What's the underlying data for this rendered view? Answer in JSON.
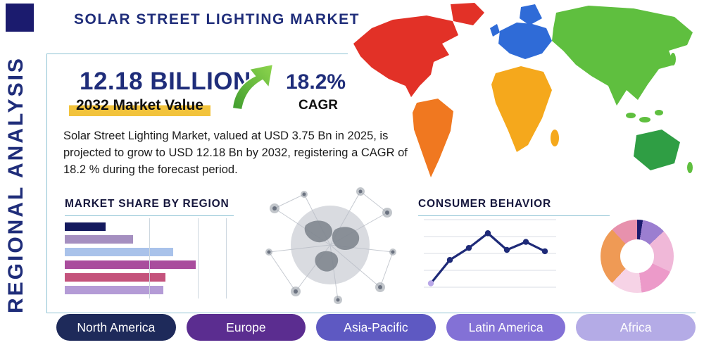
{
  "header": {
    "title": "SOLAR STREET LIGHTING MARKET"
  },
  "side_label": "REGIONAL ANALYSIS",
  "highlight": {
    "value": "12.18 BILLION",
    "value_caption": "2032 Market Value",
    "cagr": "18.2%",
    "cagr_caption": "CAGR"
  },
  "description": "Solar Street Lighting Market, valued at USD 3.75 Bn in 2025, is projected to grow to USD 12.18 Bn by 2032, registering a CAGR of 18.2 % during the forecast period.",
  "sections": {
    "market_share_title": "MARKET SHARE BY REGION",
    "consumer_behavior_title": "CONSUMER BEHAVIOR"
  },
  "colors": {
    "navy": "#1f2d7a",
    "logo_navy": "#1b1b6e",
    "border_teal": "#8fc3d4",
    "accent_yellow": "#f2c33c"
  },
  "growth_arrow": {
    "color_start": "#3f9c2e",
    "color_end": "#8fd64e"
  },
  "chart_data": [
    {
      "type": "bar",
      "name": "market_share_by_region",
      "title": "MARKET SHARE BY REGION",
      "orientation": "horizontal",
      "categories": [
        "",
        "",
        "",
        "",
        "",
        ""
      ],
      "values": [
        25,
        42,
        67,
        81,
        62,
        61
      ],
      "value_unit": "relative-percent-of-axis",
      "xlim": [
        0,
        100
      ],
      "colors": [
        "#141a5e",
        "#a58fc0",
        "#a9c2ea",
        "#a94d9d",
        "#c4537c",
        "#b49bd6"
      ],
      "grid": true,
      "legend": false
    },
    {
      "type": "line",
      "name": "consumer_behavior",
      "title": "CONSUMER BEHAVIOR",
      "x": [
        1,
        2,
        3,
        4,
        5,
        6,
        7
      ],
      "values": [
        10,
        45,
        63,
        85,
        60,
        72,
        58
      ],
      "value_unit": "relative-percent-of-axis",
      "ylim": [
        0,
        100
      ],
      "color": "#1e2a78",
      "first_point_color": "#b9a7e8",
      "grid": true,
      "legend": false
    },
    {
      "type": "pie",
      "name": "regional_share_donut",
      "title": "",
      "donut": true,
      "slices": [
        {
          "color": "#1b1b6e",
          "value": 2.5
        },
        {
          "color": "#9b7ed0",
          "value": 10.5
        },
        {
          "color": "#f0b8d8",
          "value": 19
        },
        {
          "color": "#ec9ac9",
          "value": 16
        },
        {
          "color": "#f6d3e6",
          "value": 14
        },
        {
          "color": "#ef9a55",
          "value": 26
        },
        {
          "color": "#e791ad",
          "value": 12
        }
      ]
    }
  ],
  "regions": [
    {
      "label": "North America",
      "color": "#1e2a5a"
    },
    {
      "label": "Europe",
      "color": "#5b2d90"
    },
    {
      "label": "Asia-Pacific",
      "color": "#5e59c2"
    },
    {
      "label": "Latin America",
      "color": "#8371d6"
    },
    {
      "label": "Africa",
      "color": "#b4abe6"
    }
  ],
  "map": {
    "regions": [
      {
        "id": "north-america",
        "color": "#e23127"
      },
      {
        "id": "greenland",
        "color": "#e23127"
      },
      {
        "id": "south-america",
        "color": "#f07820"
      },
      {
        "id": "europe",
        "color": "#2f6bd7"
      },
      {
        "id": "scandinavia",
        "color": "#2f6bd7"
      },
      {
        "id": "uk",
        "color": "#2f6bd7"
      },
      {
        "id": "africa",
        "color": "#f5a81c"
      },
      {
        "id": "madagascar",
        "color": "#f5a81c"
      },
      {
        "id": "asia",
        "color": "#5fbf3f"
      },
      {
        "id": "islands",
        "color": "#5fbf3f"
      },
      {
        "id": "australia",
        "color": "#2f9e44"
      }
    ]
  }
}
